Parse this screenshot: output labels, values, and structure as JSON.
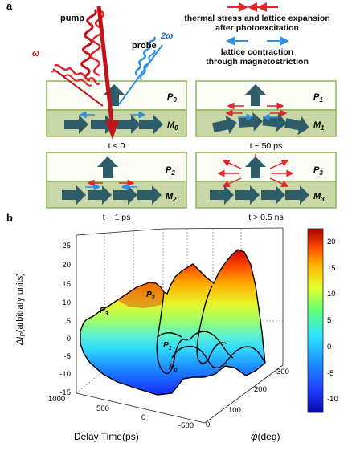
{
  "panel_a": {
    "label": "a",
    "pump_label": "pump",
    "omega_label": "ω",
    "probe_label": "probe",
    "two_omega_label": "2ω",
    "legend_red_line1": "thermal stress and lattice expansion",
    "legend_red_line2": "after photoexcitation",
    "legend_blue_line1": "lattice contraction",
    "legend_blue_line2": "through magnetostriction",
    "boxes": [
      {
        "p": "P",
        "p_sub": "0",
        "m": "M",
        "m_sub": "0",
        "time": "t < 0"
      },
      {
        "p": "P",
        "p_sub": "1",
        "m": "M",
        "m_sub": "1",
        "time": "t ~ 50 ps"
      },
      {
        "p": "P",
        "p_sub": "2",
        "m": "M",
        "m_sub": "2",
        "time": "t ~ 1 ps"
      },
      {
        "p": "P",
        "p_sub": "3",
        "m": "M",
        "m_sub": "3",
        "time": "t > 0.5 ns"
      }
    ],
    "colors": {
      "red": "#e0262b",
      "blue": "#2f8fe0",
      "green_border": "#8db35a",
      "green_fill": "#c9d6a6",
      "arrow": "#2e5c68"
    }
  },
  "panel_b": {
    "label": "b",
    "ylabel": "ΔI",
    "ylabel_sub": "P",
    "ylabel_rest": "(arbitrary units)",
    "xlabel": "Delay Time(ps)",
    "zlabel_phi": "φ",
    "zlabel_rest": "(deg)",
    "curve_labels": [
      {
        "p": "P",
        "sub": "3"
      },
      {
        "p": "P",
        "sub": "2"
      },
      {
        "p": "P",
        "sub": "1"
      },
      {
        "p": "P",
        "sub": "0"
      }
    ],
    "y_ticks": [
      "25",
      "20",
      "15",
      "10",
      "5",
      "0",
      "-5",
      "-10",
      "-15"
    ],
    "delay_ticks": [
      "1000",
      "500",
      "0",
      "-500"
    ],
    "phi_ticks": [
      "0",
      "100",
      "200",
      "300"
    ],
    "colorbar_ticks": [
      "20",
      "15",
      "10",
      "5",
      "0",
      "-5",
      "-10"
    ]
  },
  "chart_data": {
    "type": "surface",
    "ylabel": "ΔI_P(arbitrary units)",
    "xlabel": "Delay Time(ps)",
    "zlabel": "φ(deg)",
    "ylim": [
      -15,
      25
    ],
    "delay_range": [
      -500,
      1000
    ],
    "phi_range": [
      0,
      360
    ],
    "colorbar_range": [
      -13,
      22
    ],
    "colorbar_ticks": [
      20,
      15,
      10,
      5,
      0,
      -5,
      -10
    ],
    "grid": true
  }
}
